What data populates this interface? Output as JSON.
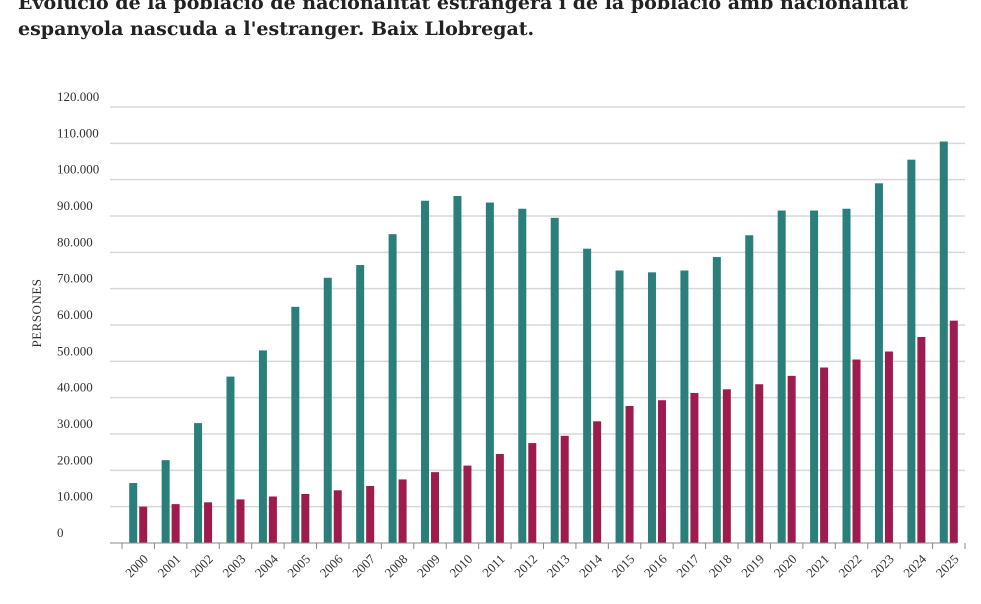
{
  "title": "Evolució de la població de nacionalitat estrangera i de la població amb nacionalitat espanyola nascuda a l'estranger. Baix Llobregat.",
  "chart_data": {
    "type": "bar",
    "title": "Evolució de la població de nacionalitat estrangera i de la població amb nacionalitat espanyola nascuda a l'estranger. Baix Llobregat.",
    "xlabel": "",
    "ylabel": "PERSONES",
    "ylim": [
      0,
      120000
    ],
    "yticks": [
      0,
      10000,
      20000,
      30000,
      40000,
      50000,
      60000,
      70000,
      80000,
      90000,
      100000,
      110000,
      120000
    ],
    "ytick_labels": [
      "0",
      "10.000",
      "20.000",
      "30.000",
      "40.000",
      "50.000",
      "60.000",
      "70.000",
      "80.000",
      "90.000",
      "100.000",
      "110.000",
      "120.000"
    ],
    "grid": true,
    "legend": "none",
    "categories": [
      "2000",
      "2001",
      "2002",
      "2003",
      "2004",
      "2005",
      "2006",
      "2007",
      "2008",
      "2009",
      "2010",
      "2011",
      "2012",
      "2013",
      "2014",
      "2015",
      "2016",
      "2017",
      "2018",
      "2019",
      "2020",
      "2021",
      "2022",
      "2023",
      "2024",
      "2025"
    ],
    "series": [
      {
        "color": "#2a7f7a",
        "values": [
          16500,
          22800,
          33000,
          45800,
          53000,
          65000,
          73000,
          76500,
          85000,
          94200,
          95500,
          93700,
          92000,
          89500,
          81000,
          75000,
          74500,
          75000,
          78700,
          84700,
          91500,
          91500,
          92000,
          99000,
          105500,
          110500
        ]
      },
      {
        "color": "#9e1b4e",
        "values": [
          10000,
          10700,
          11200,
          12000,
          12800,
          13500,
          14500,
          15700,
          17500,
          19500,
          21300,
          24500,
          27500,
          29500,
          33500,
          37700,
          39300,
          41300,
          42300,
          43700,
          46000,
          48300,
          50500,
          52700,
          56700,
          61200
        ]
      }
    ]
  }
}
